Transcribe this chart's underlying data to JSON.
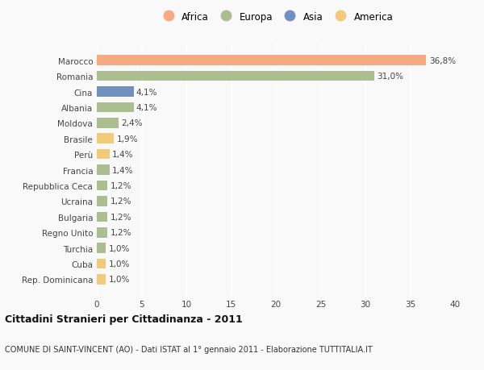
{
  "categories": [
    "Marocco",
    "Romania",
    "Cina",
    "Albania",
    "Moldova",
    "Brasile",
    "Perù",
    "Francia",
    "Repubblica Ceca",
    "Ucraina",
    "Bulgaria",
    "Regno Unito",
    "Turchia",
    "Cuba",
    "Rep. Dominicana"
  ],
  "values": [
    36.8,
    31.0,
    4.1,
    4.1,
    2.4,
    1.9,
    1.4,
    1.4,
    1.2,
    1.2,
    1.2,
    1.2,
    1.0,
    1.0,
    1.0
  ],
  "labels": [
    "36,8%",
    "31,0%",
    "4,1%",
    "4,1%",
    "2,4%",
    "1,9%",
    "1,4%",
    "1,4%",
    "1,2%",
    "1,2%",
    "1,2%",
    "1,2%",
    "1,0%",
    "1,0%",
    "1,0%"
  ],
  "continents": [
    "Africa",
    "Europa",
    "Asia",
    "Europa",
    "Europa",
    "America",
    "America",
    "Europa",
    "Europa",
    "Europa",
    "Europa",
    "Europa",
    "Europa",
    "America",
    "America"
  ],
  "colors": {
    "Africa": "#F5AA82",
    "Europa": "#ABBE8F",
    "Asia": "#7090BF",
    "America": "#F2CB7A"
  },
  "legend_order": [
    "Africa",
    "Europa",
    "Asia",
    "America"
  ],
  "title": "Cittadini Stranieri per Cittadinanza - 2011",
  "subtitle": "COMUNE DI SAINT-VINCENT (AO) - Dati ISTAT al 1° gennaio 2011 - Elaborazione TUTTITALIA.IT",
  "xlim": [
    0,
    40
  ],
  "xticks": [
    0,
    5,
    10,
    15,
    20,
    25,
    30,
    35,
    40
  ],
  "background_color": "#f9f9f9",
  "grid_color": "#e8e8e8",
  "bar_height": 0.65
}
